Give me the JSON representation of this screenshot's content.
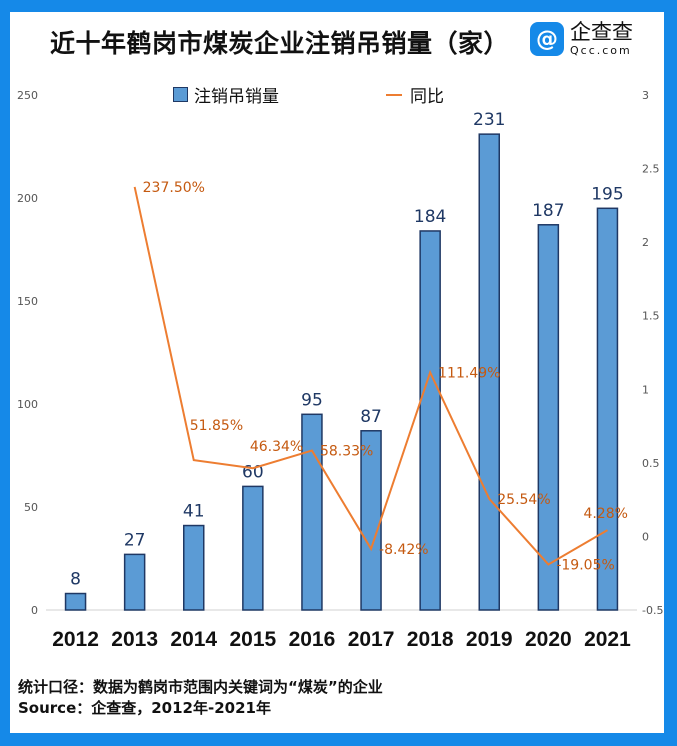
{
  "title": "近十年鹤岗市煤炭企业注销吊销量（家）",
  "logo": {
    "cn": "企查查",
    "en": "Qcc.com",
    "icon": "qcc-logo-icon"
  },
  "footer": {
    "note": "统计口径：数据为鹤岗市范围内关键词为“煤炭”的企业",
    "source": "Source：企查查，2012年-2021年"
  },
  "chart_data": {
    "type": "bar+line",
    "title": "近十年鹤岗市煤炭企业注销吊销量（家）",
    "categories": [
      "2012",
      "2013",
      "2014",
      "2015",
      "2016",
      "2017",
      "2018",
      "2019",
      "2020",
      "2021"
    ],
    "series": [
      {
        "name": "注销吊销量",
        "type": "bar",
        "axis": "left",
        "color": "#5b9bd5",
        "values": [
          8,
          27,
          41,
          60,
          95,
          87,
          184,
          231,
          187,
          195
        ],
        "labels": [
          "8",
          "27",
          "41",
          "60",
          "95",
          "87",
          "184",
          "231",
          "187",
          "195"
        ]
      },
      {
        "name": "同比",
        "type": "line",
        "axis": "right",
        "color": "#ed7d31",
        "values": [
          null,
          2.375,
          0.5185,
          0.4634,
          0.5833,
          -0.0842,
          1.1149,
          0.2554,
          -0.1905,
          0.0428
        ],
        "labels": [
          "",
          "237.50%",
          "51.85%",
          "46.34%",
          "58.33%",
          "-8.42%",
          "111.49%",
          "25.54%",
          "-19.05%",
          "4.28%"
        ]
      }
    ],
    "left_axis": {
      "range": [
        0,
        250
      ],
      "ticks": [
        "0",
        "50",
        "100",
        "150",
        "200",
        "250"
      ]
    },
    "right_axis": {
      "range": [
        -0.5,
        3
      ],
      "ticks": [
        "-0.5",
        "0",
        "0.5",
        "1",
        "1.5",
        "2",
        "2.5",
        "3"
      ]
    },
    "legend": "top-center",
    "grid": false
  }
}
